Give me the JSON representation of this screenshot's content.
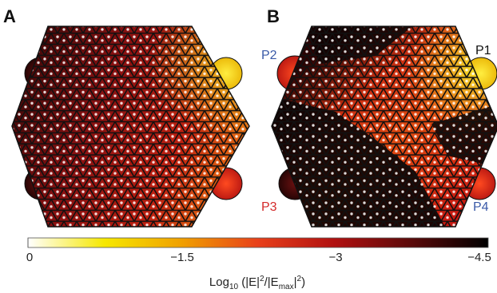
{
  "panels": [
    {
      "label": "A",
      "ports": []
    },
    {
      "label": "B",
      "ports": [
        {
          "name": "P1",
          "color": "#111111"
        },
        {
          "name": "P2",
          "color": "#3a5aa8"
        },
        {
          "name": "P3",
          "color": "#d42a2a"
        },
        {
          "name": "P4",
          "color": "#3a5aa8"
        }
      ]
    }
  ],
  "colorbar": {
    "ticks": [
      "0",
      "−1.5",
      "−3",
      "−4.5"
    ],
    "axis_title": {
      "prefix": "Log",
      "sub10": "10",
      "body": " (|E|",
      "sup1": "2",
      "mid": "/|E",
      "subMax": "max",
      "pipe": "|",
      "sup2": "2",
      "close": ")"
    },
    "gradient_colors": [
      "#ffffff",
      "#f6e800",
      "#f0a000",
      "#e8401a",
      "#b01010",
      "#5a0a0a",
      "#000000"
    ]
  }
}
